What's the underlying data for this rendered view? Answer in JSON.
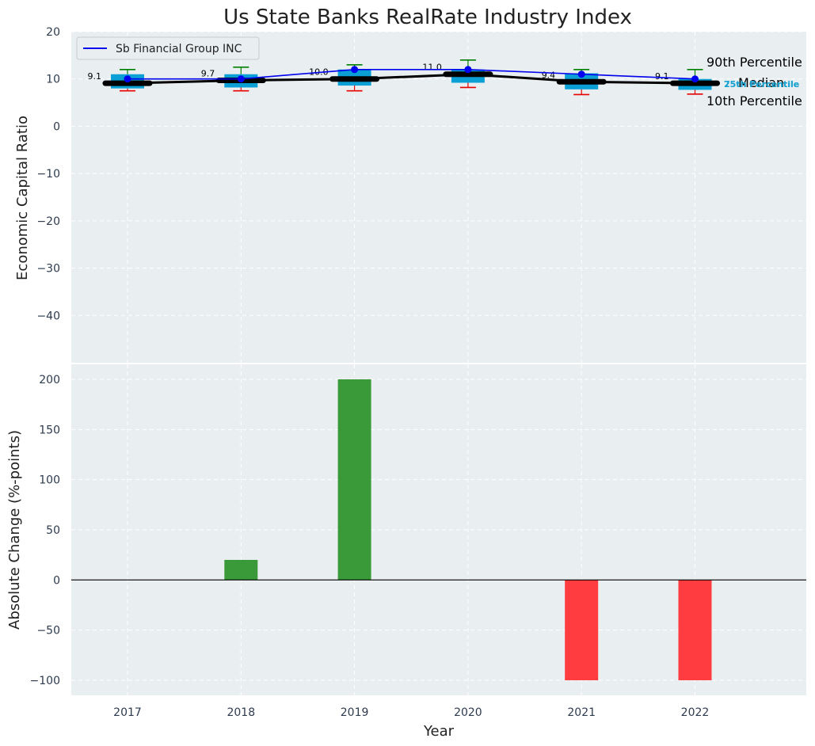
{
  "chart_data": [
    {
      "type": "box",
      "title": "Us State Banks RealRate Industry Index",
      "xlabel": "",
      "ylabel": "Economic Capital Ratio",
      "ylim": [
        -50,
        20
      ],
      "yticks": [
        20,
        10,
        0,
        -10,
        -20,
        -30,
        -40
      ],
      "years": [
        2017,
        2018,
        2019,
        2020,
        2021,
        2022
      ],
      "percentiles": {
        "p10": [
          7.5,
          7.5,
          7.5,
          8.2,
          6.7,
          6.8
        ],
        "p25": [
          8.0,
          8.2,
          8.6,
          9.2,
          7.8,
          7.7
        ],
        "median": [
          9.1,
          9.7,
          10.0,
          11.0,
          9.4,
          9.1
        ],
        "p75": [
          11.0,
          11.0,
          12.0,
          12.0,
          11.2,
          10.0
        ],
        "p90": [
          12.0,
          12.5,
          13.0,
          14.0,
          12.0,
          12.0
        ]
      },
      "median_labels": [
        "9.1",
        "9.7",
        "10.0",
        "11.0",
        "9.4",
        "9.1"
      ],
      "company_series": {
        "name": "Sb Financial Group INC",
        "values": [
          10.0,
          10.0,
          12.0,
          12.0,
          11.0,
          10.0
        ],
        "color": "#0000ee"
      },
      "annotations": {
        "p90": "90th Percentile",
        "median": "Median",
        "p10": "10th Percentile",
        "p75": "75th Percentile",
        "p25": "25th Percentile"
      },
      "colors": {
        "box": "#0aa0d6",
        "median": "#000000",
        "whisker_top": "#008000",
        "whisker_bottom": "#e60000",
        "panel_bg": "#e9eef0"
      }
    },
    {
      "type": "bar",
      "xlabel": "Year",
      "ylabel": "Absolute Change (%-points)",
      "ylim": [
        -115,
        215
      ],
      "yticks": [
        200,
        150,
        100,
        50,
        0,
        -50,
        -100
      ],
      "categories": [
        "2017",
        "2018",
        "2019",
        "2020",
        "2021",
        "2022"
      ],
      "values": [
        0,
        20,
        200,
        0,
        -100,
        -100
      ],
      "colors": {
        "positive": "#3a9a3a",
        "negative": "#ff3c40"
      }
    }
  ]
}
